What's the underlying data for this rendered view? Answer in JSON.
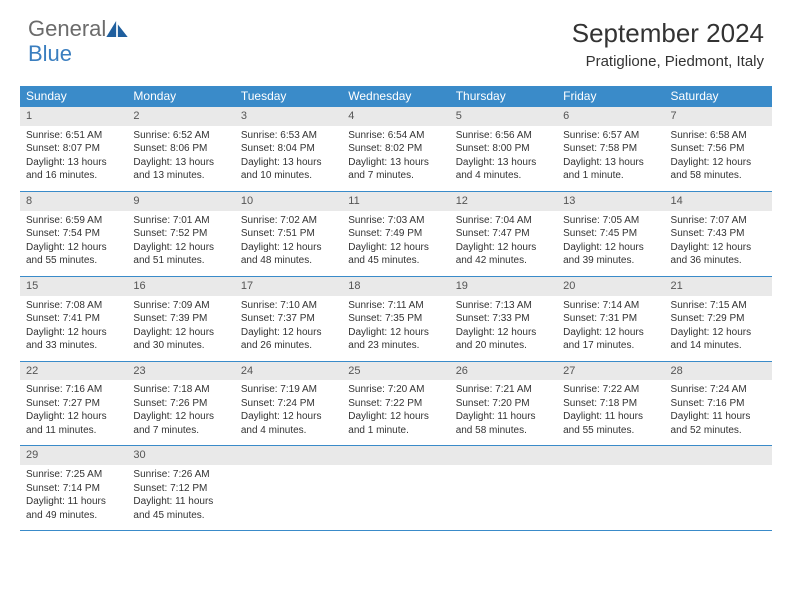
{
  "brand": {
    "word1": "General",
    "word2": "Blue",
    "word1_color": "#6b6b6b",
    "word2_color": "#3a7ebf",
    "icon_color": "#1f5f9e"
  },
  "title": "September 2024",
  "location": "Pratiglione, Piedmont, Italy",
  "colors": {
    "header_bg": "#3a8bc9",
    "header_text": "#ffffff",
    "daynum_bg": "#e9e9e9",
    "border": "#3a8bc9",
    "body_text": "#333333"
  },
  "typography": {
    "title_fontsize": 26,
    "location_fontsize": 15,
    "dow_fontsize": 12,
    "cell_fontsize": 10
  },
  "dow": [
    "Sunday",
    "Monday",
    "Tuesday",
    "Wednesday",
    "Thursday",
    "Friday",
    "Saturday"
  ],
  "weeks": [
    [
      {
        "n": "1",
        "sr": "6:51 AM",
        "ss": "8:07 PM",
        "dl": "13 hours and 16 minutes."
      },
      {
        "n": "2",
        "sr": "6:52 AM",
        "ss": "8:06 PM",
        "dl": "13 hours and 13 minutes."
      },
      {
        "n": "3",
        "sr": "6:53 AM",
        "ss": "8:04 PM",
        "dl": "13 hours and 10 minutes."
      },
      {
        "n": "4",
        "sr": "6:54 AM",
        "ss": "8:02 PM",
        "dl": "13 hours and 7 minutes."
      },
      {
        "n": "5",
        "sr": "6:56 AM",
        "ss": "8:00 PM",
        "dl": "13 hours and 4 minutes."
      },
      {
        "n": "6",
        "sr": "6:57 AM",
        "ss": "7:58 PM",
        "dl": "13 hours and 1 minute."
      },
      {
        "n": "7",
        "sr": "6:58 AM",
        "ss": "7:56 PM",
        "dl": "12 hours and 58 minutes."
      }
    ],
    [
      {
        "n": "8",
        "sr": "6:59 AM",
        "ss": "7:54 PM",
        "dl": "12 hours and 55 minutes."
      },
      {
        "n": "9",
        "sr": "7:01 AM",
        "ss": "7:52 PM",
        "dl": "12 hours and 51 minutes."
      },
      {
        "n": "10",
        "sr": "7:02 AM",
        "ss": "7:51 PM",
        "dl": "12 hours and 48 minutes."
      },
      {
        "n": "11",
        "sr": "7:03 AM",
        "ss": "7:49 PM",
        "dl": "12 hours and 45 minutes."
      },
      {
        "n": "12",
        "sr": "7:04 AM",
        "ss": "7:47 PM",
        "dl": "12 hours and 42 minutes."
      },
      {
        "n": "13",
        "sr": "7:05 AM",
        "ss": "7:45 PM",
        "dl": "12 hours and 39 minutes."
      },
      {
        "n": "14",
        "sr": "7:07 AM",
        "ss": "7:43 PM",
        "dl": "12 hours and 36 minutes."
      }
    ],
    [
      {
        "n": "15",
        "sr": "7:08 AM",
        "ss": "7:41 PM",
        "dl": "12 hours and 33 minutes."
      },
      {
        "n": "16",
        "sr": "7:09 AM",
        "ss": "7:39 PM",
        "dl": "12 hours and 30 minutes."
      },
      {
        "n": "17",
        "sr": "7:10 AM",
        "ss": "7:37 PM",
        "dl": "12 hours and 26 minutes."
      },
      {
        "n": "18",
        "sr": "7:11 AM",
        "ss": "7:35 PM",
        "dl": "12 hours and 23 minutes."
      },
      {
        "n": "19",
        "sr": "7:13 AM",
        "ss": "7:33 PM",
        "dl": "12 hours and 20 minutes."
      },
      {
        "n": "20",
        "sr": "7:14 AM",
        "ss": "7:31 PM",
        "dl": "12 hours and 17 minutes."
      },
      {
        "n": "21",
        "sr": "7:15 AM",
        "ss": "7:29 PM",
        "dl": "12 hours and 14 minutes."
      }
    ],
    [
      {
        "n": "22",
        "sr": "7:16 AM",
        "ss": "7:27 PM",
        "dl": "12 hours and 11 minutes."
      },
      {
        "n": "23",
        "sr": "7:18 AM",
        "ss": "7:26 PM",
        "dl": "12 hours and 7 minutes."
      },
      {
        "n": "24",
        "sr": "7:19 AM",
        "ss": "7:24 PM",
        "dl": "12 hours and 4 minutes."
      },
      {
        "n": "25",
        "sr": "7:20 AM",
        "ss": "7:22 PM",
        "dl": "12 hours and 1 minute."
      },
      {
        "n": "26",
        "sr": "7:21 AM",
        "ss": "7:20 PM",
        "dl": "11 hours and 58 minutes."
      },
      {
        "n": "27",
        "sr": "7:22 AM",
        "ss": "7:18 PM",
        "dl": "11 hours and 55 minutes."
      },
      {
        "n": "28",
        "sr": "7:24 AM",
        "ss": "7:16 PM",
        "dl": "11 hours and 52 minutes."
      }
    ],
    [
      {
        "n": "29",
        "sr": "7:25 AM",
        "ss": "7:14 PM",
        "dl": "11 hours and 49 minutes."
      },
      {
        "n": "30",
        "sr": "7:26 AM",
        "ss": "7:12 PM",
        "dl": "11 hours and 45 minutes."
      },
      null,
      null,
      null,
      null,
      null
    ]
  ],
  "labels": {
    "sunrise": "Sunrise:",
    "sunset": "Sunset:",
    "daylight": "Daylight:"
  }
}
